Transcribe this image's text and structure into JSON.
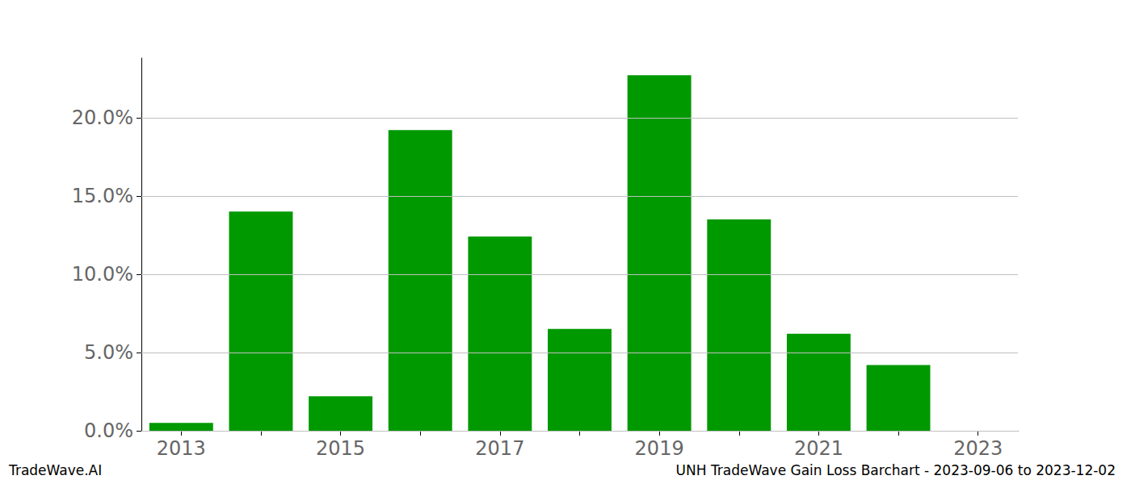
{
  "chart_data": {
    "type": "bar",
    "title": "UNH TradeWave Gain Loss Barchart - 2023-09-06 to 2023-12-02",
    "annotations": [
      "TradeWave.AI"
    ],
    "categories": [
      "2013",
      null,
      "2015",
      null,
      "2017",
      null,
      "2019",
      null,
      "2021",
      null,
      "2023"
    ],
    "values": [
      0.5,
      14.0,
      2.2,
      19.2,
      12.4,
      6.5,
      22.7,
      13.5,
      6.2,
      4.2,
      null
    ],
    "color": "#009900",
    "ylim": [
      0,
      23.8
    ],
    "yticks": [
      {
        "value": 0,
        "label": "0.0%"
      },
      {
        "value": 5,
        "label": "5.0%"
      },
      {
        "value": 10,
        "label": "10.0%"
      },
      {
        "value": 15,
        "label": "15.0%"
      },
      {
        "value": 20,
        "label": "20.0%"
      }
    ],
    "grid": true
  }
}
